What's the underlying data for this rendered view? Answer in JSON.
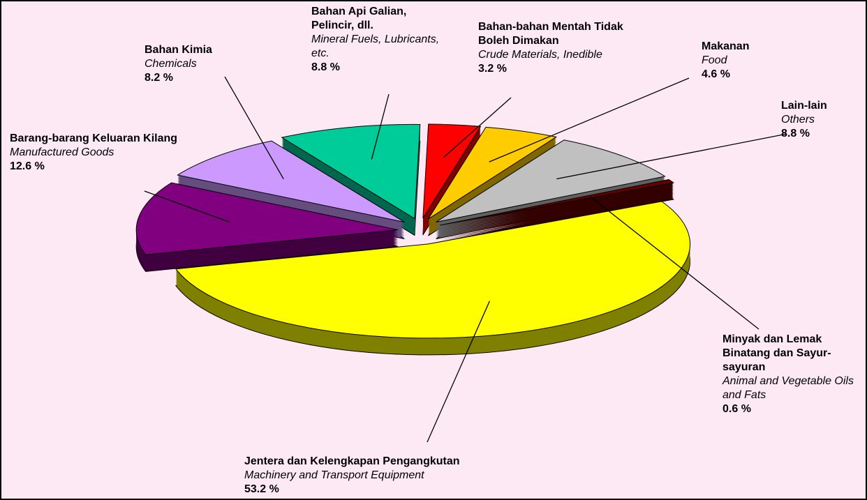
{
  "chart_data": {
    "type": "pie",
    "categories": [
      "Bahan Kimia",
      "Bahan Api Galian, Pelincir, dll.",
      "Bahan-bahan Mentah Tidak Boleh Dimakan",
      "Makanan",
      "Lain-lain",
      "Minyak dan Lemak Binatang dan Sayur-sayuran",
      "Jentera dan Kelengkapan Pengangkutan",
      "Barang-barang Keluaran Kilang"
    ],
    "categories_en": [
      "Chemicals",
      "Mineral Fuels, Lubricants, etc.",
      "Crude Materials, Inedible",
      "Food",
      "Others",
      "Animal and Vegetable Oils and Fats",
      "Machinery and Transport Equipment",
      "Manufactured Goods"
    ],
    "values": [
      8.2,
      8.8,
      3.2,
      4.6,
      8.8,
      0.6,
      53.2,
      12.6
    ],
    "value_labels": [
      "8.2 %",
      "8.8  %",
      "3.2 %",
      "4.6 %",
      "8.8 %",
      "0.6 %",
      "53.2 %",
      "12.6 %"
    ],
    "colors": [
      "#cc99ff",
      "#00cc99",
      "#ff0000",
      "#ffcc00",
      "#c0c0c0",
      "#660000",
      "#ffff00",
      "#800080"
    ]
  }
}
